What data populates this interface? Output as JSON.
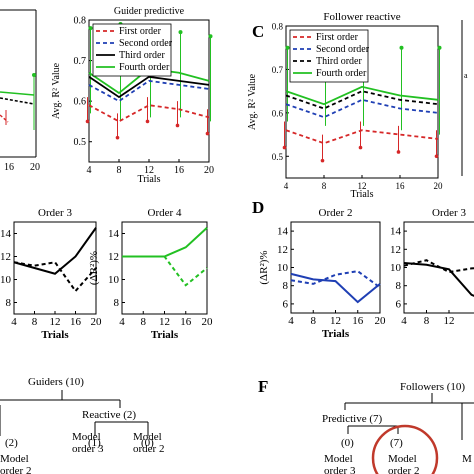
{
  "chart_data": [
    {
      "id": "B",
      "type": "line",
      "title": "Guider predictive",
      "xlabel": "Trials",
      "ylabel": "Avg. R² Value",
      "x": [
        4,
        8,
        12,
        16,
        20
      ],
      "xlim": [
        4,
        20
      ],
      "ylim": [
        0.45,
        0.8
      ],
      "xticks": [
        "4",
        "8",
        "12",
        "16",
        "20"
      ],
      "yticks": [
        "0.5",
        "0.6",
        "0.7",
        "0.8"
      ],
      "series": [
        {
          "name": "First order",
          "color": "#d62728",
          "dash": "dashed",
          "values": [
            0.59,
            0.55,
            0.59,
            0.58,
            0.56
          ]
        },
        {
          "name": "Second order",
          "color": "#1f3fb4",
          "dash": "dashed",
          "values": [
            0.64,
            0.6,
            0.65,
            0.64,
            0.63
          ]
        },
        {
          "name": "Third order",
          "color": "#000000",
          "dash": "solid",
          "values": [
            0.66,
            0.61,
            0.66,
            0.65,
            0.64
          ]
        },
        {
          "name": "Fourth order",
          "color": "#22c022",
          "dash": "solid",
          "values": [
            0.67,
            0.62,
            0.68,
            0.67,
            0.65
          ]
        }
      ],
      "errorbars": {
        "color": "#22c022",
        "low": [
          0.57,
          0.55,
          0.56,
          0.56,
          0.55
        ],
        "high": [
          0.78,
          0.79,
          0.78,
          0.77,
          0.76
        ]
      }
    },
    {
      "id": "C",
      "type": "line",
      "title": "Follower reactive",
      "xlabel": "Trials",
      "ylabel": "Avg. R² Value",
      "x": [
        4,
        8,
        12,
        16,
        20
      ],
      "xlim": [
        4,
        20
      ],
      "ylim": [
        0.45,
        0.8
      ],
      "xticks": [
        "4",
        "8",
        "12",
        "16",
        "20"
      ],
      "yticks": [
        "0.5",
        "0.6",
        "0.7",
        "0.8"
      ],
      "series": [
        {
          "name": "First order",
          "color": "#d62728",
          "dash": "dashed",
          "values": [
            0.56,
            0.53,
            0.56,
            0.55,
            0.54
          ]
        },
        {
          "name": "Second order",
          "color": "#1f3fb4",
          "dash": "dashed",
          "values": [
            0.62,
            0.59,
            0.63,
            0.61,
            0.6
          ]
        },
        {
          "name": "Third order",
          "color": "#000000",
          "dash": "dashed",
          "values": [
            0.64,
            0.61,
            0.65,
            0.63,
            0.62
          ]
        },
        {
          "name": "Fourth order",
          "color": "#22c022",
          "dash": "solid",
          "values": [
            0.65,
            0.62,
            0.66,
            0.64,
            0.63
          ]
        }
      ],
      "errorbars": {
        "color": "#22c022",
        "low": [
          0.58,
          0.57,
          0.57,
          0.56,
          0.55
        ],
        "high": [
          0.75,
          0.76,
          0.75,
          0.75,
          0.75
        ]
      }
    }
  ],
  "small_multiples": [
    {
      "id": "lower-left-1",
      "title": "Order 3",
      "xlabel": "Trials",
      "ylabel": "(ΔR²)%",
      "x": [
        4,
        8,
        12,
        16,
        20
      ],
      "xlim": [
        4,
        20
      ],
      "ylim": [
        7,
        15
      ],
      "xticks": [
        "4",
        "8",
        "12",
        "16",
        "20"
      ],
      "yticks": [
        "8",
        "10",
        "12",
        "14"
      ],
      "series": [
        {
          "color": "#000000",
          "dash": "solid",
          "values": [
            11.5,
            11,
            10.5,
            12,
            14.5
          ]
        },
        {
          "color": "#000000",
          "dash": "dashed",
          "values": [
            11.5,
            11.2,
            11.5,
            9,
            11
          ]
        }
      ]
    },
    {
      "id": "lower-left-2",
      "title": "Order 4",
      "xlabel": "Trials",
      "ylabel": "(ΔR²)%",
      "x": [
        4,
        8,
        12,
        16,
        20
      ],
      "xlim": [
        4,
        20
      ],
      "ylim": [
        7,
        15
      ],
      "xticks": [
        "4",
        "8",
        "12",
        "16",
        "20"
      ],
      "yticks": [
        "8",
        "10",
        "12",
        "14"
      ],
      "series": [
        {
          "color": "#22c022",
          "dash": "solid",
          "values": [
            12,
            12,
            12,
            12.8,
            14.5
          ]
        },
        {
          "color": "#22c022",
          "dash": "dashed",
          "values": [
            12,
            12,
            12,
            9.5,
            11
          ]
        }
      ]
    },
    {
      "id": "D-1",
      "title": "Order 2",
      "xlabel": "Trials",
      "ylabel": "(ΔR²)%",
      "x": [
        4,
        8,
        12,
        16,
        20
      ],
      "xlim": [
        4,
        20
      ],
      "ylim": [
        5,
        15
      ],
      "xticks": [
        "4",
        "8",
        "12",
        "16",
        "20"
      ],
      "yticks": [
        "6",
        "8",
        "10",
        "12",
        "14"
      ],
      "series": [
        {
          "color": "#1f3fb4",
          "dash": "solid",
          "values": [
            9.3,
            8.7,
            8.5,
            6.2,
            8.2
          ]
        },
        {
          "color": "#1f3fb4",
          "dash": "dashed",
          "values": [
            8.6,
            8.2,
            9.2,
            9.6,
            7.8
          ]
        }
      ]
    },
    {
      "id": "D-2",
      "title": "Order 3",
      "xlabel": "",
      "ylabel": "",
      "x": [
        4,
        8,
        12,
        16,
        20
      ],
      "xlim": [
        4,
        20
      ],
      "ylim": [
        5,
        15
      ],
      "xticks": [
        "4",
        "8",
        "12"
      ],
      "yticks": [
        "6",
        "8",
        "10",
        "12",
        "14"
      ],
      "series": [
        {
          "color": "#000000",
          "dash": "solid",
          "values": [
            10.5,
            10.3,
            9.8,
            7,
            6
          ]
        },
        {
          "color": "#000000",
          "dash": "dashed",
          "values": [
            10.2,
            10.8,
            9.5,
            9.9,
            10
          ]
        }
      ]
    }
  ],
  "panel_labels": [
    "C",
    "D",
    "F"
  ],
  "tree_left": {
    "root": "Guiders (10)",
    "branch": "Reactive (2)",
    "counts": [
      "(2)",
      "(1)",
      "(0)"
    ],
    "leaf_labels": [
      "Model",
      "Model",
      "Model"
    ],
    "leaf_orders": [
      "order 2",
      "order 3",
      "order 2"
    ]
  },
  "tree_right": {
    "root": "Followers (10)",
    "branch": "Predictive (7)",
    "counts": [
      "(0)",
      "(7)"
    ],
    "leaf_labels": [
      "Model",
      "Model",
      "M"
    ],
    "leaf_orders": [
      "order 3",
      "order 2"
    ]
  }
}
